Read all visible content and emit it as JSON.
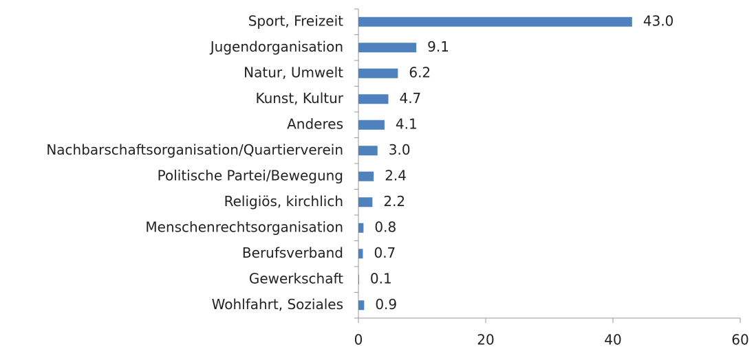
{
  "chart_data": {
    "type": "barh",
    "categories": [
      "Sport, Freizeit",
      "Jugendorganisation",
      "Natur, Umwelt",
      "Kunst, Kultur",
      "Anderes",
      "Nachbarschaftsorganisation/Quartierverein",
      "Politische Partei/Bewegung",
      "Religiös, kirchlich",
      "Menschenrechtsorganisation",
      "Berufsverband",
      "Gewerkschaft",
      "Wohlfahrt, Soziales"
    ],
    "values": [
      43.0,
      9.1,
      6.2,
      4.7,
      4.1,
      3.0,
      2.4,
      2.2,
      0.8,
      0.7,
      0.1,
      0.9
    ],
    "value_labels": [
      "43.0",
      "9.1",
      "6.2",
      "4.7",
      "4.1",
      "3.0",
      "2.4",
      "2.2",
      "0.8",
      "0.7",
      "0.1",
      "0.9"
    ],
    "color": "#4f81bd",
    "xlim": [
      0,
      60
    ],
    "xticks": [
      0,
      20,
      40,
      60
    ],
    "grid": false
  }
}
